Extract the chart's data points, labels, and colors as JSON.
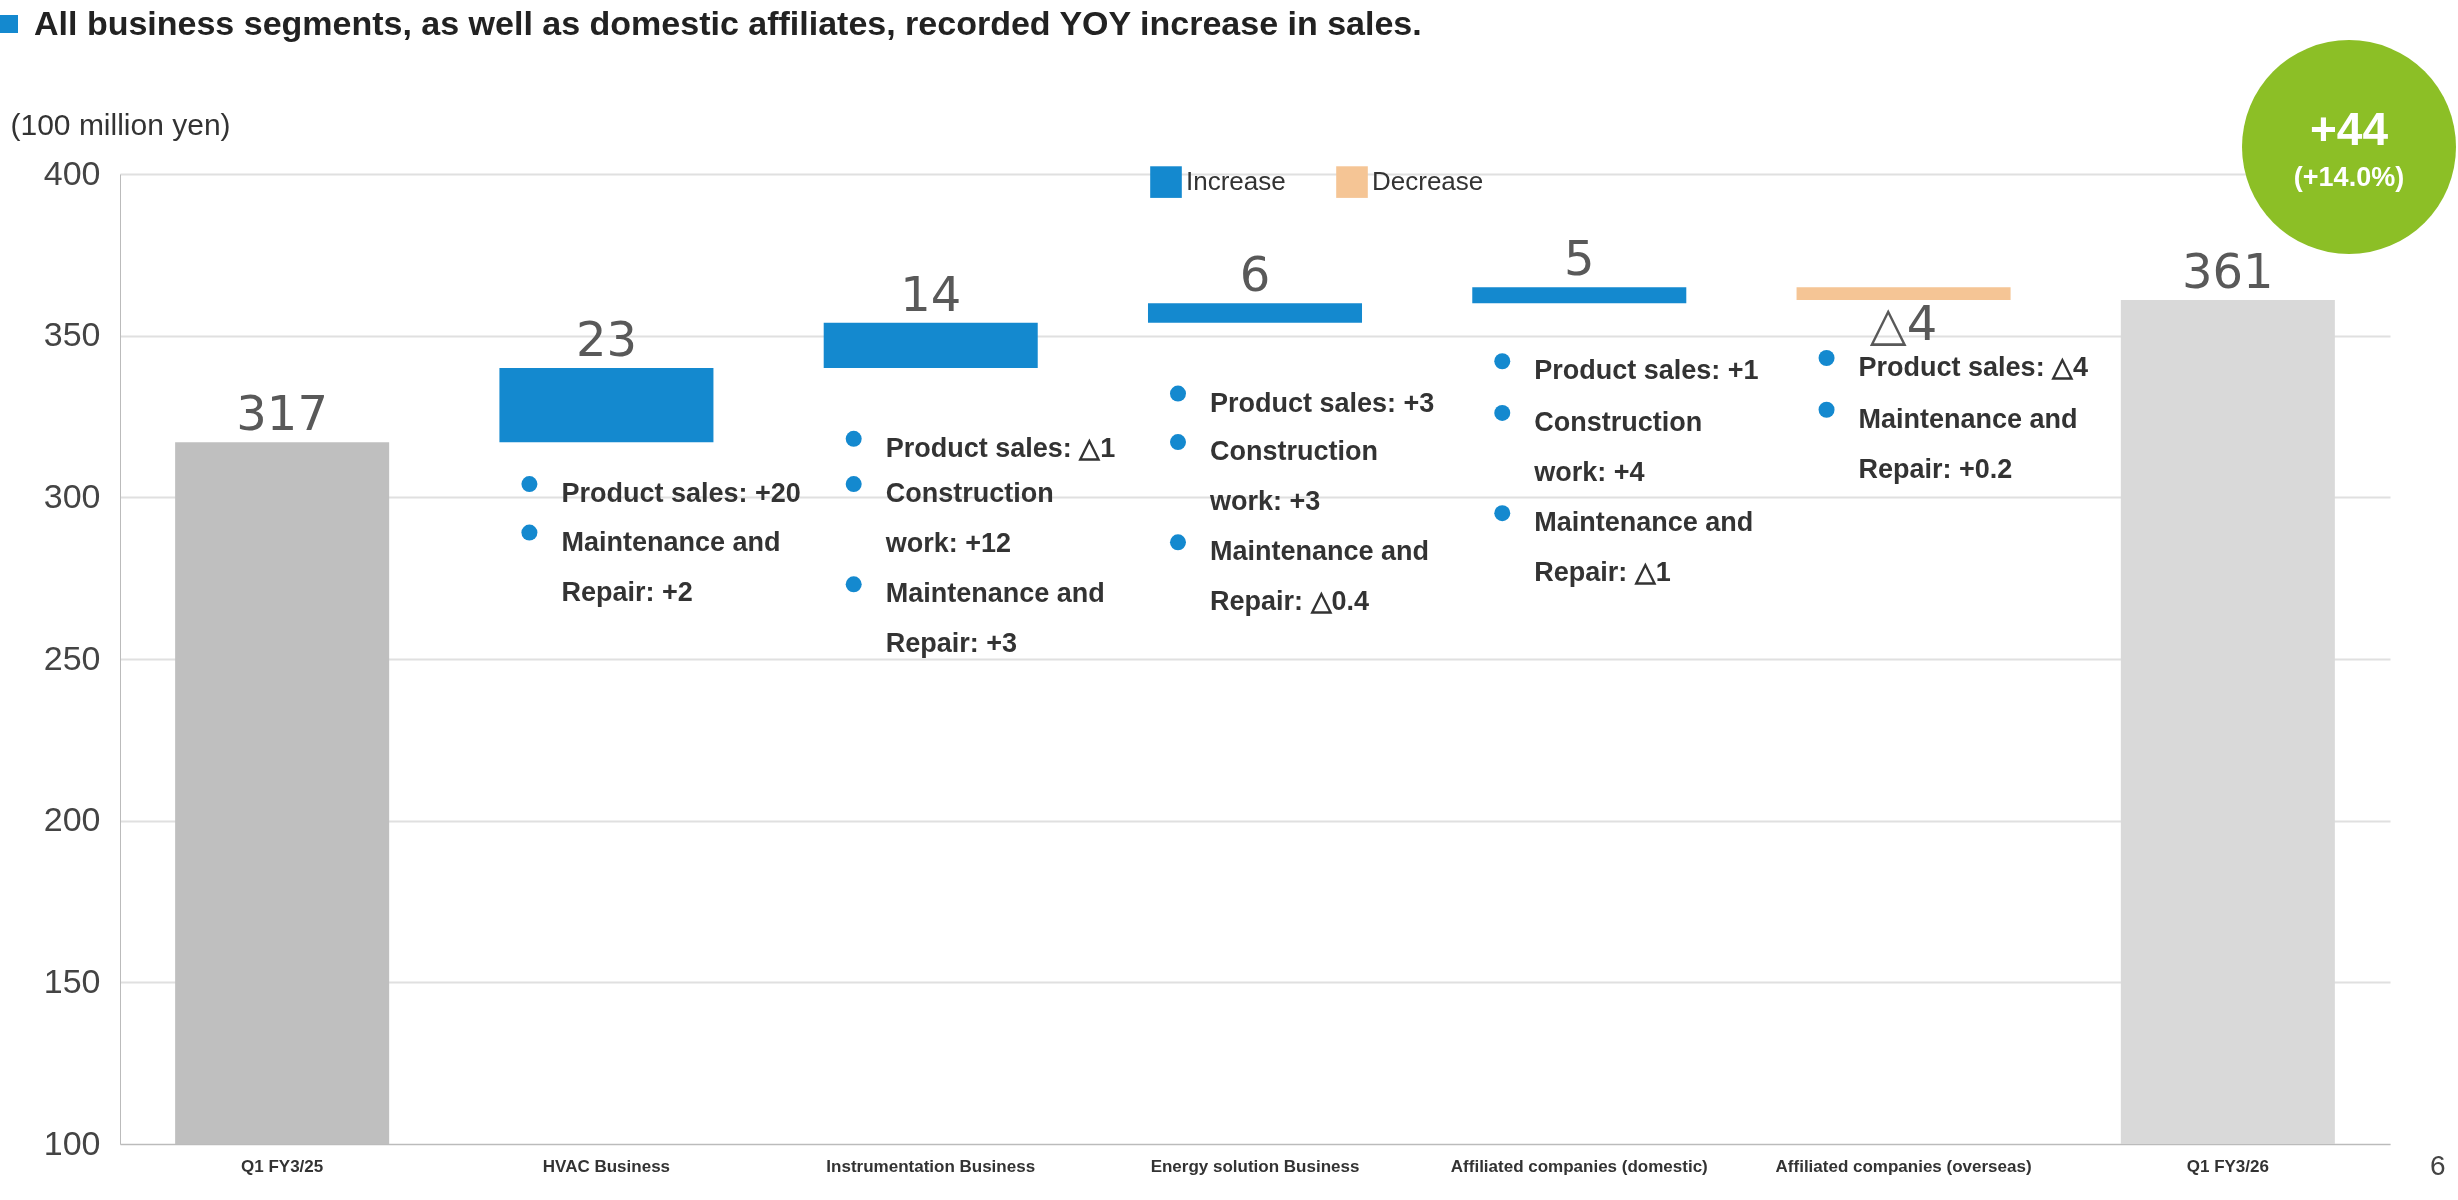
{
  "chart_data": {
    "type": "bar",
    "title": "All business segments, as well as domestic affiliates, recorded YOY increase in sales.",
    "ylabel": "(100 million yen)",
    "categories": [
      "Q1 FY3/25",
      "HVAC Business",
      "Instrumentation Business",
      "Energy solution Business",
      "Affiliated companies (domestic)",
      "Affiliated companies (overseas)",
      "Q1 FY3/26"
    ],
    "series": [
      {
        "color": "#bfbfbf",
        "values": [
          317,
          null,
          null,
          null,
          null,
          null,
          null
        ]
      },
      {
        "name": "Increase",
        "color": "#1489cf",
        "base": [
          null,
          317,
          340,
          354,
          360,
          null,
          null
        ],
        "values": [
          null,
          23,
          14,
          6,
          5,
          null,
          null
        ]
      },
      {
        "name": "Decrease",
        "color": "#f5c595",
        "base": [
          null,
          null,
          null,
          null,
          null,
          365,
          null
        ],
        "values": [
          null,
          null,
          null,
          null,
          null,
          -4,
          null
        ]
      },
      {
        "color": "#d9d9d9",
        "values": [
          null,
          null,
          null,
          null,
          null,
          null,
          361
        ]
      }
    ],
    "value_labels": [
      "317",
      "23",
      "14",
      "6",
      "5",
      "△4",
      "361"
    ],
    "ylim": [
      100,
      400
    ],
    "yticks": [
      100,
      150,
      200,
      250,
      300,
      350,
      400
    ],
    "grid": "y",
    "legend": "top",
    "annotations": [
      "Product sales: +20",
      "Maintenance and\nRepair: +2",
      "Product sales: △1",
      "Construction\nwork: +12",
      "Maintenance and\nRepair: +3",
      "Product sales: +3",
      "Construction\nwork: +3",
      "Maintenance and\nRepair: △0.4",
      "Product sales: +1",
      "Construction\nwork: +4",
      "Maintenance and\nRepair: △1",
      "Product sales: △4",
      "Maintenance and\nRepair: +0.2",
      "+44",
      "(+14.0%)",
      "6"
    ]
  }
}
